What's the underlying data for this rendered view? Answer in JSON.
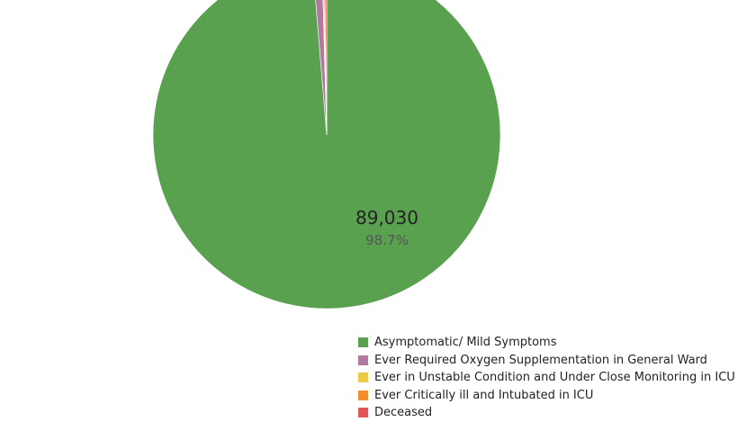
{
  "chart_data": {
    "type": "pie",
    "categories": [
      "Asymptomatic/ Mild Symptoms",
      "Ever Required Oxygen Supplementation in General Ward",
      "Ever in Unstable Condition and Under Close Monitoring in ICU",
      "Ever Critically ill and Intubated in ICU",
      "Deceased"
    ],
    "values": [
      89030,
      794,
      120,
      100,
      170
    ],
    "colors": [
      "#59a14f",
      "#b07aa1",
      "#edc948",
      "#f28e2b",
      "#e15759"
    ],
    "data_labels": [
      {
        "category": "Asymptomatic/ Mild Symptoms",
        "value": "89,030",
        "percent": "98.7%"
      }
    ],
    "legend_position": "bottom-right"
  }
}
